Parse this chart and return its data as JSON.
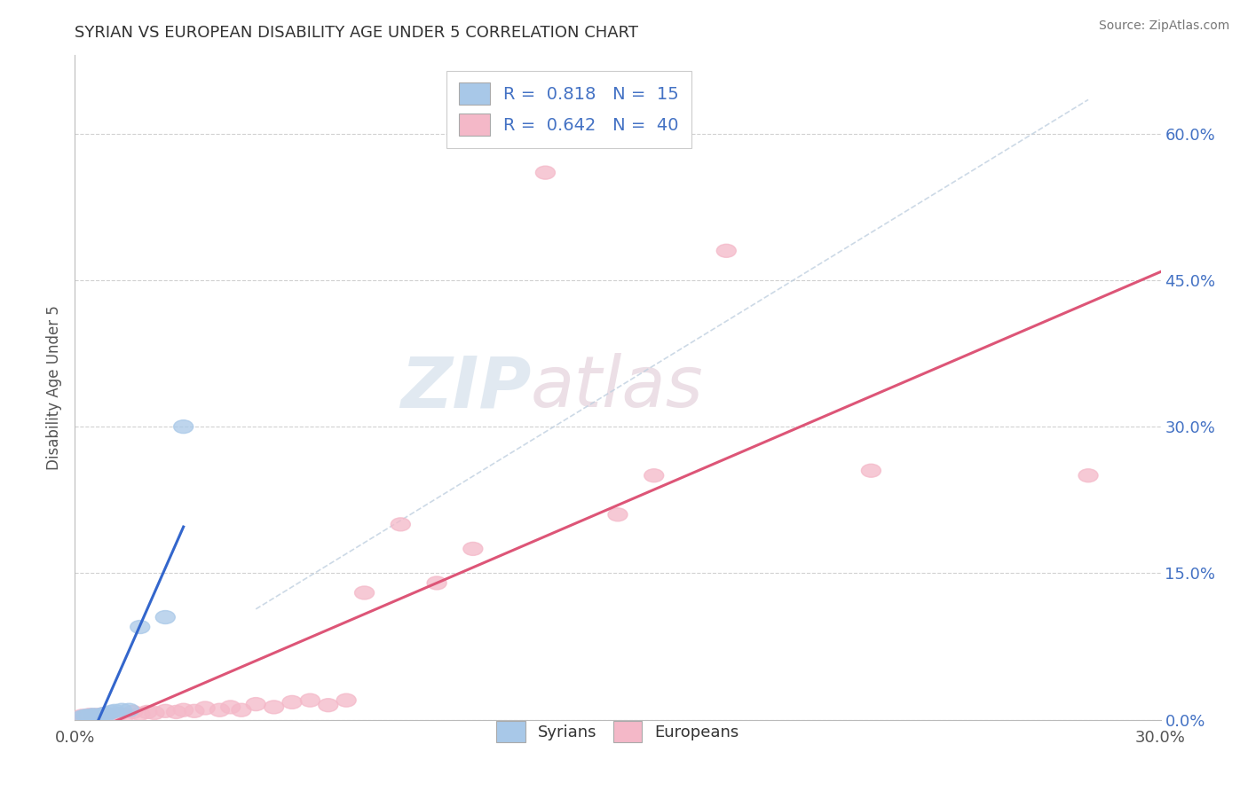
{
  "title": "SYRIAN VS EUROPEAN DISABILITY AGE UNDER 5 CORRELATION CHART",
  "source": "Source: ZipAtlas.com",
  "ylabel": "Disability Age Under 5",
  "xlim": [
    0.0,
    0.3
  ],
  "ylim": [
    0.0,
    0.68
  ],
  "right_yticks": [
    0.0,
    0.15,
    0.3,
    0.45,
    0.6
  ],
  "right_yticklabels": [
    "0.0%",
    "15.0%",
    "30.0%",
    "45.0%",
    "60.0%"
  ],
  "xticks": [
    0.0,
    0.3
  ],
  "xticklabels": [
    "0.0%",
    "30.0%"
  ],
  "syrian_color": "#a8c8e8",
  "european_color": "#f4b8c8",
  "syrian_line_color": "#3366cc",
  "european_line_color": "#dd5577",
  "ref_line_color": "#b8c8d8",
  "syrian_R": 0.818,
  "syrian_N": 15,
  "european_R": 0.642,
  "european_N": 40,
  "watermark_zip": "ZIP",
  "watermark_atlas": "atlas",
  "bg_color": "#ffffff",
  "grid_color": "#cccccc",
  "title_fontsize": 13,
  "legend_fontsize": 14,
  "syrians_x": [
    0.002,
    0.003,
    0.004,
    0.005,
    0.006,
    0.007,
    0.008,
    0.009,
    0.01,
    0.011,
    0.013,
    0.015,
    0.018,
    0.025,
    0.03
  ],
  "syrians_y": [
    0.003,
    0.004,
    0.004,
    0.005,
    0.004,
    0.005,
    0.006,
    0.006,
    0.008,
    0.009,
    0.01,
    0.01,
    0.095,
    0.105,
    0.3
  ],
  "europeans_x": [
    0.001,
    0.002,
    0.003,
    0.004,
    0.005,
    0.006,
    0.007,
    0.008,
    0.009,
    0.01,
    0.012,
    0.014,
    0.016,
    0.018,
    0.02,
    0.022,
    0.025,
    0.028,
    0.03,
    0.033,
    0.036,
    0.04,
    0.043,
    0.046,
    0.05,
    0.055,
    0.06,
    0.065,
    0.07,
    0.075,
    0.08,
    0.09,
    0.1,
    0.11,
    0.13,
    0.15,
    0.16,
    0.18,
    0.22,
    0.28
  ],
  "europeans_y": [
    0.002,
    0.004,
    0.003,
    0.005,
    0.004,
    0.005,
    0.004,
    0.006,
    0.004,
    0.005,
    0.006,
    0.005,
    0.008,
    0.006,
    0.008,
    0.007,
    0.009,
    0.008,
    0.01,
    0.009,
    0.012,
    0.01,
    0.013,
    0.01,
    0.016,
    0.013,
    0.018,
    0.02,
    0.015,
    0.02,
    0.13,
    0.2,
    0.14,
    0.175,
    0.56,
    0.21,
    0.25,
    0.48,
    0.255,
    0.25
  ],
  "syrian_line_x": [
    0.0,
    0.03
  ],
  "european_line_x": [
    0.0,
    0.3
  ],
  "ref_line_x": [
    0.0,
    0.3
  ]
}
